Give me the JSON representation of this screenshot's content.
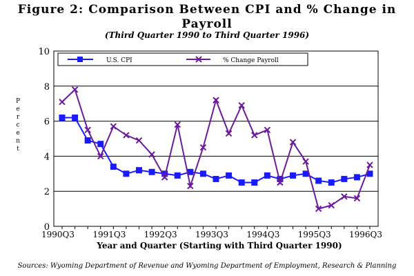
{
  "title_line1": "Figure 2:  Comparison Between CPI and % Change in",
  "title_line2": "Payroll",
  "subtitle": "(Third Quarter 1990 to Third Quarter 1996)",
  "source": "Sources:  Wyoming Department of Revenue and Wyoming Department of Employment, Research & Planning",
  "colors": {
    "cpi": "#1a1aff",
    "payroll": "#6a1a9a",
    "grid": "#000000"
  },
  "chart_data": {
    "type": "line",
    "title": "Figure 2:  Comparison Between CPI and % Change in Payroll",
    "subtitle": "(Third Quarter 1990 to Third Quarter 1996)",
    "xlabel": "Year and Quarter (Starting with Third Quarter 1990)",
    "ylabel": "Percent",
    "ylim": [
      0,
      10
    ],
    "yticks": [
      0,
      2,
      4,
      6,
      8,
      10
    ],
    "x_tick_labels": [
      "1990Q3",
      "1991Q3",
      "1992Q3",
      "1993Q3",
      "1994Q3",
      "1995Q3",
      "1996Q3"
    ],
    "grid": true,
    "legend_position": "top",
    "x": [
      "1990Q3",
      "1990Q4",
      "1991Q1",
      "1991Q2",
      "1991Q3",
      "1991Q4",
      "1992Q1",
      "1992Q2",
      "1992Q3",
      "1992Q4",
      "1993Q1",
      "1993Q2",
      "1993Q3",
      "1993Q4",
      "1994Q1",
      "1994Q2",
      "1994Q3",
      "1994Q4",
      "1995Q1",
      "1995Q2",
      "1995Q3",
      "1995Q4",
      "1996Q1",
      "1996Q2",
      "1996Q3"
    ],
    "series": [
      {
        "name": "U.S. CPI",
        "marker": "square",
        "values": [
          6.2,
          6.2,
          4.9,
          4.7,
          3.4,
          3.0,
          3.2,
          3.1,
          3.0,
          2.9,
          3.1,
          3.0,
          2.7,
          2.9,
          2.5,
          2.5,
          2.9,
          2.7,
          2.9,
          3.0,
          2.6,
          2.5,
          2.7,
          2.8,
          3.0
        ]
      },
      {
        "name": "% Change Payroll",
        "marker": "x",
        "values": [
          7.1,
          7.8,
          5.5,
          4.0,
          5.7,
          5.2,
          4.9,
          4.1,
          2.8,
          5.8,
          2.3,
          4.5,
          7.2,
          5.3,
          6.9,
          5.2,
          5.5,
          2.5,
          4.8,
          3.7,
          1.0,
          1.2,
          1.7,
          1.6,
          3.5
        ]
      }
    ]
  }
}
